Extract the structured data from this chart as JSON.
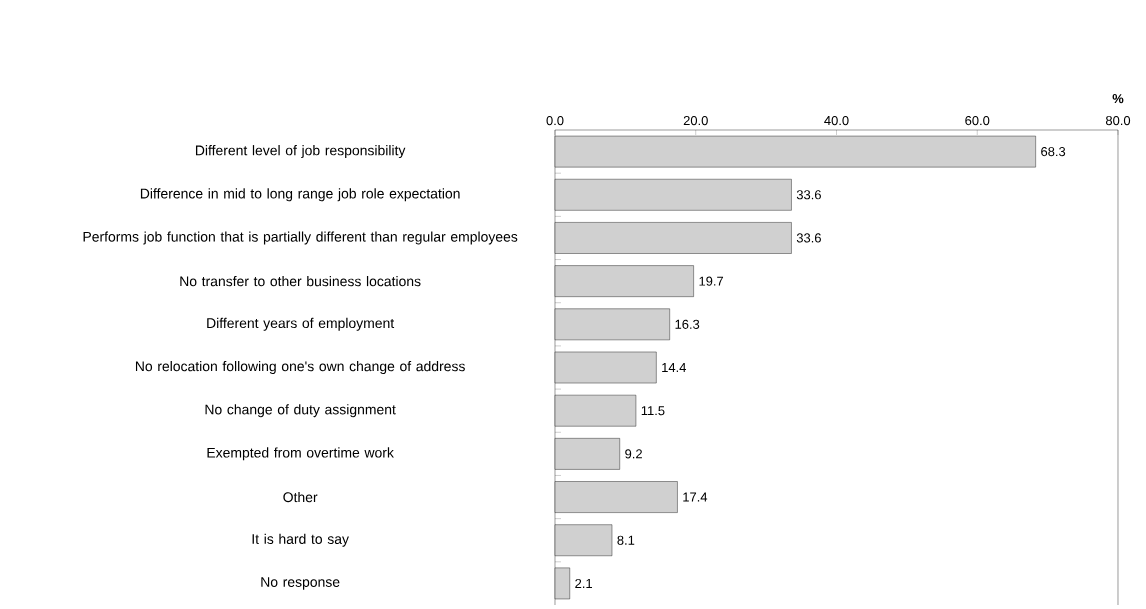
{
  "chart_data": {
    "type": "bar",
    "orientation": "horizontal",
    "xlabel": "%",
    "categories": [
      "Different  level of job responsibility",
      "Difference in mid to long range job role expectation",
      "Performs job function that is partially different than regular employees",
      "No transfer to other business locations",
      "Different years of employment",
      "No relocation following one's own change of address",
      "No change of duty assignment",
      "Exempted from overtime work",
      "Other",
      "It is hard to say",
      "No response"
    ],
    "values": [
      68.3,
      33.6,
      33.6,
      19.7,
      16.3,
      14.4,
      11.5,
      9.2,
      17.4,
      8.1,
      2.1
    ],
    "value_labels": [
      "68.3",
      "33.6",
      "33.6",
      "19.7",
      "16.3",
      "14.4",
      "11.5",
      "9.2",
      "17.4",
      "8.1",
      "2.1"
    ],
    "color": "#d0d0d0",
    "xlim": [
      0,
      80
    ],
    "xticks": [
      {
        "value": 0,
        "label": "0.0"
      },
      {
        "value": 20,
        "label": "20.0"
      },
      {
        "value": 40,
        "label": "40.0"
      },
      {
        "value": 60,
        "label": "60.0"
      },
      {
        "value": 80,
        "label": "80.0"
      }
    ],
    "grid": false
  }
}
